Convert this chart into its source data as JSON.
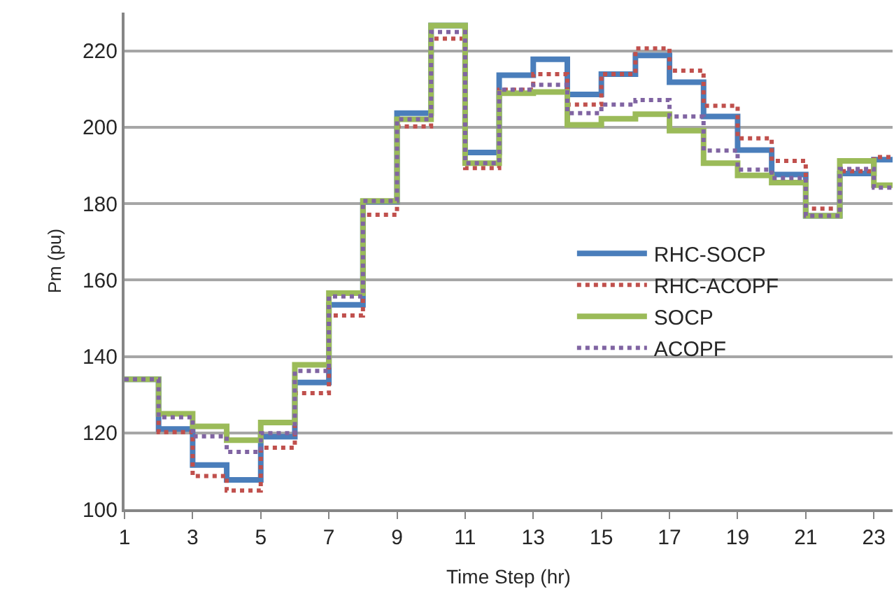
{
  "chart_data": {
    "type": "step",
    "xlabel": "Time Step (hr)",
    "ylabel": "Pm (pu)",
    "x": [
      1,
      2,
      3,
      4,
      5,
      6,
      7,
      8,
      9,
      10,
      11,
      12,
      13,
      14,
      15,
      16,
      17,
      18,
      19,
      20,
      21,
      22,
      23,
      23.55
    ],
    "series": [
      {
        "name": "RHC-SOCP",
        "color": "#4a7ebb",
        "line_style": "solid",
        "values": [
          134,
          121,
          111.6,
          107.7,
          119,
          133.2,
          153.5,
          180.5,
          203.7,
          226.6,
          193.4,
          213.6,
          217.8,
          208.6,
          213.9,
          218.8,
          211.8,
          202.8,
          194,
          187.6,
          176.8,
          187.9,
          191.5,
          191.5
        ]
      },
      {
        "name": "RHC-ACOPF",
        "color": "#c0504d",
        "line_style": "dotted",
        "values": [
          134,
          120.2,
          108.7,
          104.9,
          116.1,
          130.4,
          150.7,
          177.1,
          200.2,
          223.2,
          189.3,
          209.8,
          213.9,
          205.9,
          213.9,
          220.6,
          214.8,
          205.6,
          197.1,
          191.2,
          178.7,
          188.5,
          192.2,
          192.2
        ]
      },
      {
        "name": "SOCP",
        "color": "#9bbb59",
        "line_style": "solid",
        "values": [
          134,
          125,
          121.7,
          118.1,
          122.7,
          137.8,
          156.6,
          180.7,
          202.1,
          226.6,
          190.6,
          208.9,
          209.2,
          200.6,
          202.2,
          203.4,
          199.1,
          190.6,
          187.4,
          185.5,
          176.8,
          191.2,
          184.8,
          184.8
        ]
      },
      {
        "name": "ACOPF",
        "color": "#8064a2",
        "line_style": "dotted",
        "values": [
          134,
          124.1,
          119.1,
          115,
          119.9,
          136.2,
          155.7,
          180.7,
          202.1,
          224.9,
          190.6,
          209.8,
          211.1,
          203.7,
          205.9,
          207.1,
          202.8,
          193.9,
          188.9,
          186.7,
          176.8,
          189.1,
          184.2,
          184.2
        ]
      }
    ],
    "xlim": [
      1,
      23.55
    ],
    "xticks": [
      1,
      3,
      5,
      7,
      9,
      11,
      13,
      15,
      17,
      19,
      21,
      23
    ],
    "ylim": [
      100,
      230
    ],
    "yticks": [
      100,
      120,
      140,
      160,
      180,
      200,
      220
    ],
    "grid": "y",
    "legend": "right",
    "marker": "none"
  }
}
